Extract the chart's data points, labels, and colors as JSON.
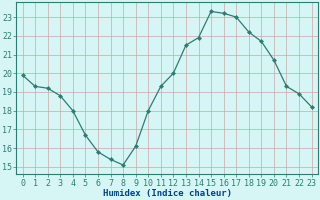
{
  "x": [
    0,
    1,
    2,
    3,
    4,
    5,
    6,
    7,
    8,
    9,
    10,
    11,
    12,
    13,
    14,
    15,
    16,
    17,
    18,
    19,
    20,
    21,
    22,
    23
  ],
  "y": [
    19.9,
    19.3,
    19.2,
    18.8,
    18.0,
    16.7,
    15.8,
    15.4,
    15.1,
    16.1,
    18.0,
    19.3,
    20.0,
    21.5,
    21.9,
    23.3,
    23.2,
    23.0,
    22.2,
    21.7,
    20.7,
    19.3,
    18.9,
    18.2
  ],
  "line_color": "#2e7d72",
  "marker": "D",
  "marker_size": 2.0,
  "bg_color": "#d6f5f5",
  "grid_color_major": "#c8a8a8",
  "grid_color_minor": "#ddc8c8",
  "xlabel": "Humidex (Indice chaleur)",
  "ylabel_ticks": [
    15,
    16,
    17,
    18,
    19,
    20,
    21,
    22,
    23
  ],
  "xlim": [
    -0.5,
    23.5
  ],
  "ylim": [
    14.6,
    23.8
  ],
  "xlabel_fontsize": 6.5,
  "tick_fontsize": 6.0,
  "xlabel_color": "#004488",
  "tick_color": "#2e7d72"
}
